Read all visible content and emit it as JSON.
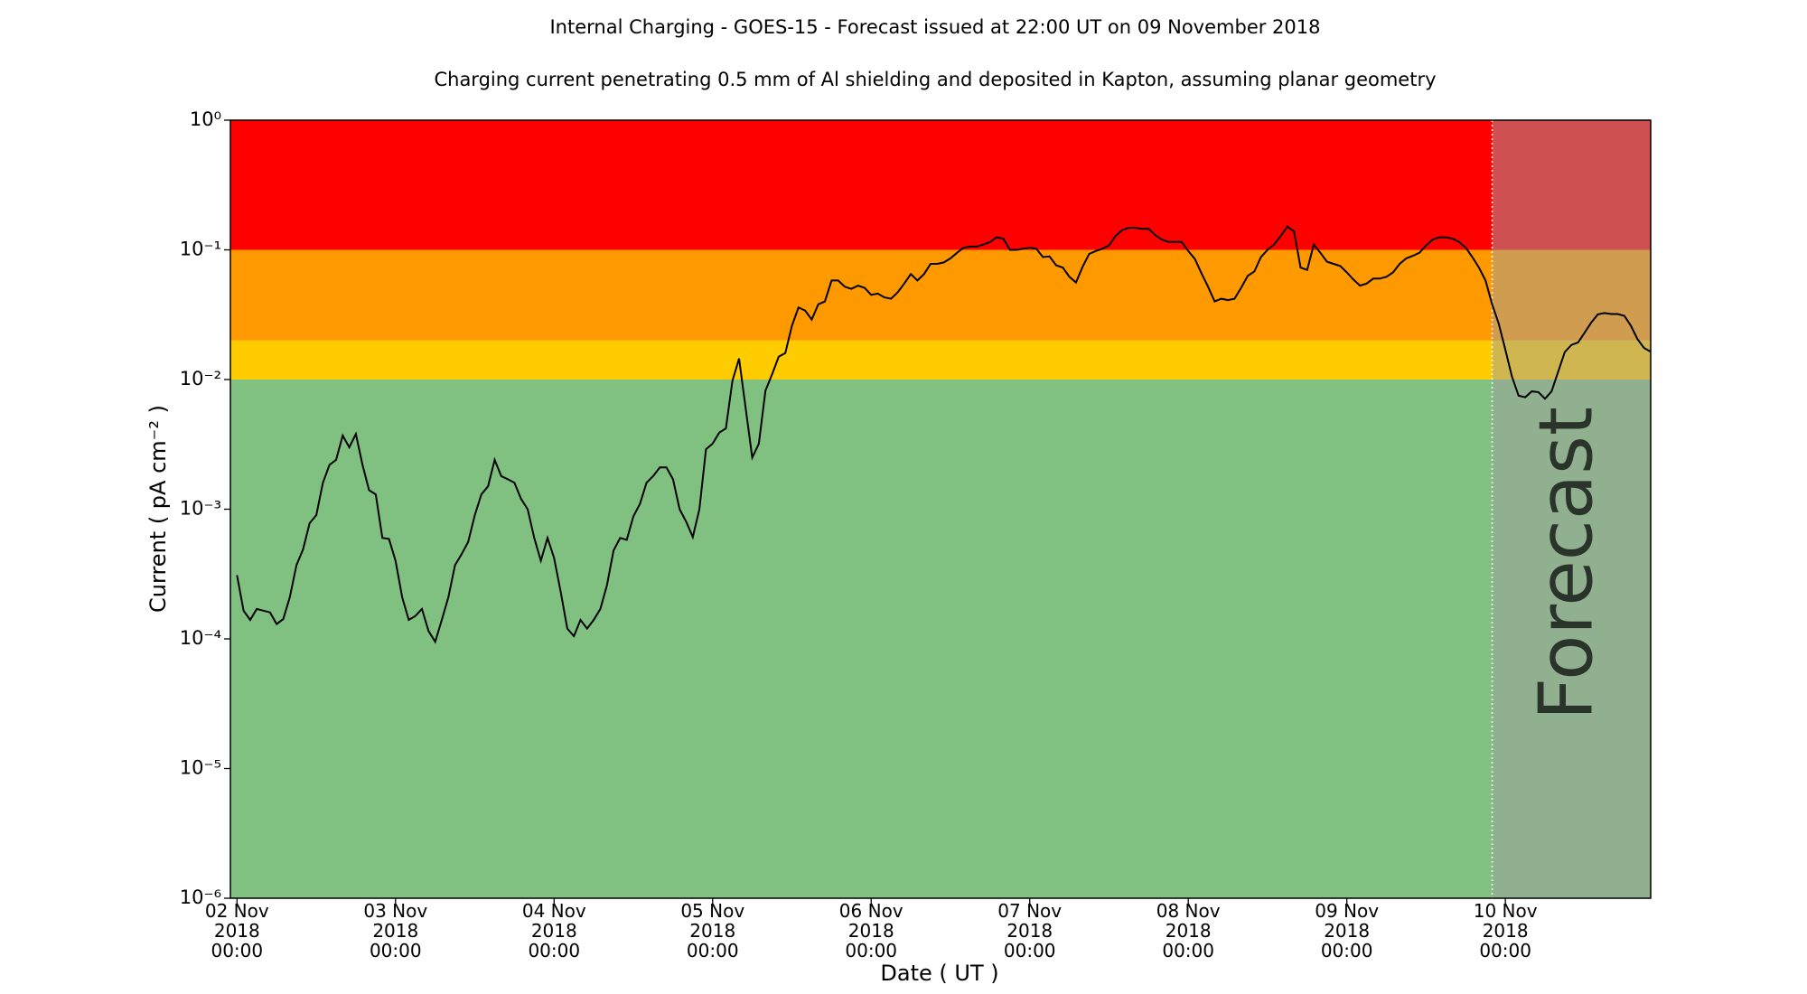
{
  "chart_data": {
    "type": "line",
    "title": "Internal Charging - GOES-15 - Forecast issued at 22:00 UT on 09 November 2018",
    "subtitle": "Charging current penetrating 0.5 mm of Al shielding and deposited in Kapton, assuming planar geometry",
    "x_label": "Date ( UT )",
    "y_label": "Current ( pA cm⁻² )",
    "log_y": true,
    "color": "#000000",
    "thresholds": [
      0.01,
      0.02,
      0.1
    ],
    "band_colors": [
      "#80c080",
      "#ffcc00",
      "#ff9900",
      "#ff0000"
    ],
    "forecast_start": "2018-11-09T22:00",
    "forecast_label": "Forecast",
    "xlim": [
      "2018-11-01T23:00",
      "2018-11-10T22:00"
    ],
    "ylim": [
      1e-06,
      1
    ],
    "yticks": [
      {
        "value": 1e-06,
        "label": "10⁻⁶"
      },
      {
        "value": 1e-05,
        "label": "10⁻⁵"
      },
      {
        "value": 0.0001,
        "label": "10⁻⁴"
      },
      {
        "value": 0.001,
        "label": "10⁻³"
      },
      {
        "value": 0.01,
        "label": "10⁻²"
      },
      {
        "value": 0.1,
        "label": "10⁻¹"
      },
      {
        "value": 1,
        "label": "10⁰"
      }
    ],
    "xticks": [
      {
        "value": "2018-11-02T00:00",
        "label": "02 Nov\n2018\n00:00"
      },
      {
        "value": "2018-11-03T00:00",
        "label": "03 Nov\n2018\n00:00"
      },
      {
        "value": "2018-11-04T00:00",
        "label": "04 Nov\n2018\n00:00"
      },
      {
        "value": "2018-11-05T00:00",
        "label": "05 Nov\n2018\n00:00"
      },
      {
        "value": "2018-11-06T00:00",
        "label": "06 Nov\n2018\n00:00"
      },
      {
        "value": "2018-11-07T00:00",
        "label": "07 Nov\n2018\n00:00"
      },
      {
        "value": "2018-11-08T00:00",
        "label": "08 Nov\n2018\n00:00"
      },
      {
        "value": "2018-11-09T00:00",
        "label": "09 Nov\n2018\n00:00"
      },
      {
        "value": "2018-11-10T00:00",
        "label": "10 Nov\n2018\n00:00"
      }
    ],
    "x": [
      "2018-11-02T00:00",
      "2018-11-02T01:00",
      "2018-11-02T02:00",
      "2018-11-02T03:00",
      "2018-11-02T04:00",
      "2018-11-02T05:00",
      "2018-11-02T06:00",
      "2018-11-02T07:00",
      "2018-11-02T08:00",
      "2018-11-02T09:00",
      "2018-11-02T10:00",
      "2018-11-02T11:00",
      "2018-11-02T12:00",
      "2018-11-02T13:00",
      "2018-11-02T14:00",
      "2018-11-02T15:00",
      "2018-11-02T16:00",
      "2018-11-02T17:00",
      "2018-11-02T18:00",
      "2018-11-02T19:00",
      "2018-11-02T20:00",
      "2018-11-02T21:00",
      "2018-11-02T22:00",
      "2018-11-02T23:00",
      "2018-11-03T00:00",
      "2018-11-03T01:00",
      "2018-11-03T02:00",
      "2018-11-03T03:00",
      "2018-11-03T04:00",
      "2018-11-03T05:00",
      "2018-11-03T06:00",
      "2018-11-03T07:00",
      "2018-11-03T08:00",
      "2018-11-03T09:00",
      "2018-11-03T10:00",
      "2018-11-03T11:00",
      "2018-11-03T12:00",
      "2018-11-03T13:00",
      "2018-11-03T14:00",
      "2018-11-03T15:00",
      "2018-11-03T16:00",
      "2018-11-03T17:00",
      "2018-11-03T18:00",
      "2018-11-03T19:00",
      "2018-11-03T20:00",
      "2018-11-03T21:00",
      "2018-11-03T22:00",
      "2018-11-03T23:00",
      "2018-11-04T00:00",
      "2018-11-04T01:00",
      "2018-11-04T02:00",
      "2018-11-04T03:00",
      "2018-11-04T04:00",
      "2018-11-04T05:00",
      "2018-11-04T06:00",
      "2018-11-04T07:00",
      "2018-11-04T08:00",
      "2018-11-04T09:00",
      "2018-11-04T10:00",
      "2018-11-04T11:00",
      "2018-11-04T12:00",
      "2018-11-04T13:00",
      "2018-11-04T14:00",
      "2018-11-04T15:00",
      "2018-11-04T16:00",
      "2018-11-04T17:00",
      "2018-11-04T18:00",
      "2018-11-04T19:00",
      "2018-11-04T20:00",
      "2018-11-04T21:00",
      "2018-11-04T22:00",
      "2018-11-04T23:00",
      "2018-11-05T00:00",
      "2018-11-05T01:00",
      "2018-11-05T02:00",
      "2018-11-05T03:00",
      "2018-11-05T04:00",
      "2018-11-05T05:00",
      "2018-11-05T06:00",
      "2018-11-05T07:00",
      "2018-11-05T08:00",
      "2018-11-05T09:00",
      "2018-11-05T10:00",
      "2018-11-05T11:00",
      "2018-11-05T12:00",
      "2018-11-05T13:00",
      "2018-11-05T14:00",
      "2018-11-05T15:00",
      "2018-11-05T16:00",
      "2018-11-05T17:00",
      "2018-11-05T18:00",
      "2018-11-05T19:00",
      "2018-11-05T20:00",
      "2018-11-05T21:00",
      "2018-11-05T22:00",
      "2018-11-05T23:00",
      "2018-11-06T00:00",
      "2018-11-06T01:00",
      "2018-11-06T02:00",
      "2018-11-06T03:00",
      "2018-11-06T04:00",
      "2018-11-06T05:00",
      "2018-11-06T06:00",
      "2018-11-06T07:00",
      "2018-11-06T08:00",
      "2018-11-06T09:00",
      "2018-11-06T10:00",
      "2018-11-06T11:00",
      "2018-11-06T12:00",
      "2018-11-06T13:00",
      "2018-11-06T14:00",
      "2018-11-06T15:00",
      "2018-11-06T16:00",
      "2018-11-06T17:00",
      "2018-11-06T18:00",
      "2018-11-06T19:00",
      "2018-11-06T20:00",
      "2018-11-06T21:00",
      "2018-11-06T22:00",
      "2018-11-06T23:00",
      "2018-11-07T00:00",
      "2018-11-07T01:00",
      "2018-11-07T02:00",
      "2018-11-07T03:00",
      "2018-11-07T04:00",
      "2018-11-07T05:00",
      "2018-11-07T06:00",
      "2018-11-07T07:00",
      "2018-11-07T08:00",
      "2018-11-07T09:00",
      "2018-11-07T10:00",
      "2018-11-07T11:00",
      "2018-11-07T12:00",
      "2018-11-07T13:00",
      "2018-11-07T14:00",
      "2018-11-07T15:00",
      "2018-11-07T16:00",
      "2018-11-07T17:00",
      "2018-11-07T18:00",
      "2018-11-07T19:00",
      "2018-11-07T20:00",
      "2018-11-07T21:00",
      "2018-11-07T22:00",
      "2018-11-07T23:00",
      "2018-11-08T00:00",
      "2018-11-08T01:00",
      "2018-11-08T02:00",
      "2018-11-08T03:00",
      "2018-11-08T04:00",
      "2018-11-08T05:00",
      "2018-11-08T06:00",
      "2018-11-08T07:00",
      "2018-11-08T08:00",
      "2018-11-08T09:00",
      "2018-11-08T10:00",
      "2018-11-08T11:00",
      "2018-11-08T12:00",
      "2018-11-08T13:00",
      "2018-11-08T14:00",
      "2018-11-08T15:00",
      "2018-11-08T16:00",
      "2018-11-08T17:00",
      "2018-11-08T18:00",
      "2018-11-08T19:00",
      "2018-11-08T20:00",
      "2018-11-08T21:00",
      "2018-11-08T22:00",
      "2018-11-08T23:00",
      "2018-11-09T00:00",
      "2018-11-09T01:00",
      "2018-11-09T02:00",
      "2018-11-09T03:00",
      "2018-11-09T04:00",
      "2018-11-09T05:00",
      "2018-11-09T06:00",
      "2018-11-09T07:00",
      "2018-11-09T08:00",
      "2018-11-09T09:00",
      "2018-11-09T10:00",
      "2018-11-09T11:00",
      "2018-11-09T12:00",
      "2018-11-09T13:00",
      "2018-11-09T14:00",
      "2018-11-09T15:00",
      "2018-11-09T16:00",
      "2018-11-09T17:00",
      "2018-11-09T18:00",
      "2018-11-09T19:00",
      "2018-11-09T20:00",
      "2018-11-09T21:00",
      "2018-11-09T22:00",
      "2018-11-09T23:00",
      "2018-11-10T00:00",
      "2018-11-10T01:00",
      "2018-11-10T02:00",
      "2018-11-10T03:00",
      "2018-11-10T04:00",
      "2018-11-10T05:00",
      "2018-11-10T06:00",
      "2018-11-10T07:00",
      "2018-11-10T08:00",
      "2018-11-10T09:00",
      "2018-11-10T10:00",
      "2018-11-10T11:00",
      "2018-11-10T12:00",
      "2018-11-10T13:00",
      "2018-11-10T14:00",
      "2018-11-10T15:00",
      "2018-11-10T16:00",
      "2018-11-10T17:00",
      "2018-11-10T18:00",
      "2018-11-10T19:00",
      "2018-11-10T20:00",
      "2018-11-10T21:00",
      "2018-11-10T22:00"
    ],
    "values": [
      0.00031,
      0.000165,
      0.00014,
      0.00017,
      0.000165,
      0.00016,
      0.00013,
      0.000142,
      0.00021,
      0.00037,
      0.00049,
      0.00078,
      0.0009,
      0.0016,
      0.0022,
      0.0024,
      0.0037,
      0.003,
      0.0038,
      0.0022,
      0.0014,
      0.0013,
      0.0006,
      0.00059,
      0.0004,
      0.00021,
      0.00014,
      0.00015,
      0.00017,
      0.000115,
      9.5e-05,
      0.00014,
      0.00021,
      0.00037,
      0.00045,
      0.00056,
      0.0009,
      0.0013,
      0.0015,
      0.0024,
      0.0018,
      0.0017,
      0.0016,
      0.0012,
      0.001,
      0.0006,
      0.0004,
      0.0006,
      0.00042,
      0.00023,
      0.00012,
      0.000105,
      0.00014,
      0.00012,
      0.00014,
      0.00017,
      0.00026,
      0.00048,
      0.0006,
      0.00058,
      0.00088,
      0.0011,
      0.0016,
      0.0018,
      0.0021,
      0.0021,
      0.0017,
      0.001,
      0.0008,
      0.00061,
      0.001,
      0.0029,
      0.0032,
      0.0039,
      0.0042,
      0.0098,
      0.0145,
      0.006,
      0.0025,
      0.0032,
      0.0082,
      0.011,
      0.015,
      0.016,
      0.026,
      0.036,
      0.034,
      0.029,
      0.038,
      0.04,
      0.058,
      0.058,
      0.052,
      0.05,
      0.053,
      0.051,
      0.045,
      0.046,
      0.043,
      0.042,
      0.047,
      0.055,
      0.065,
      0.058,
      0.065,
      0.078,
      0.078,
      0.08,
      0.086,
      0.095,
      0.104,
      0.106,
      0.106,
      0.11,
      0.115,
      0.125,
      0.122,
      0.1,
      0.1,
      0.102,
      0.104,
      0.102,
      0.088,
      0.089,
      0.076,
      0.073,
      0.062,
      0.056,
      0.074,
      0.093,
      0.098,
      0.102,
      0.108,
      0.128,
      0.142,
      0.148,
      0.148,
      0.145,
      0.145,
      0.13,
      0.12,
      0.115,
      0.115,
      0.115,
      0.098,
      0.085,
      0.066,
      0.052,
      0.04,
      0.042,
      0.041,
      0.042,
      0.051,
      0.063,
      0.068,
      0.088,
      0.1,
      0.11,
      0.128,
      0.151,
      0.139,
      0.073,
      0.07,
      0.11,
      0.095,
      0.081,
      0.078,
      0.075,
      0.067,
      0.059,
      0.053,
      0.055,
      0.06,
      0.06,
      0.062,
      0.067,
      0.078,
      0.086,
      0.09,
      0.095,
      0.108,
      0.12,
      0.125,
      0.125,
      0.122,
      0.115,
      0.104,
      0.088,
      0.073,
      0.058,
      0.038,
      0.027,
      0.017,
      0.0105,
      0.0075,
      0.0073,
      0.0081,
      0.008,
      0.0071,
      0.0081,
      0.0115,
      0.0163,
      0.0185,
      0.0193,
      0.023,
      0.0275,
      0.0318,
      0.0326,
      0.032,
      0.032,
      0.031,
      0.026,
      0.0205,
      0.0175,
      0.0164
    ]
  }
}
